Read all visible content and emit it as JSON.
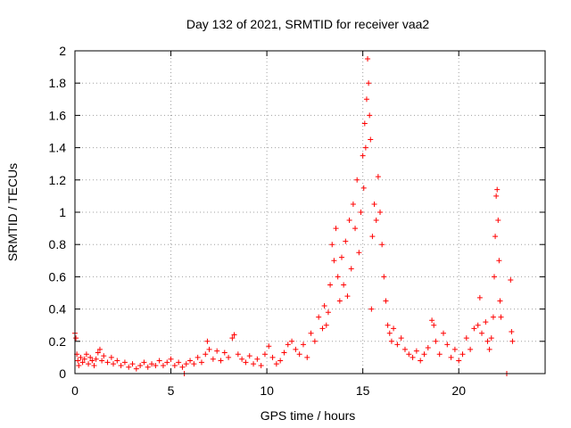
{
  "chart_data": {
    "type": "scatter",
    "title": "Day 132 of 2021, SRMTID for receiver vaa2",
    "xlabel": "GPS time / hours",
    "ylabel": "SRMTID / TECUs",
    "xlim": [
      0,
      24.5
    ],
    "ylim": [
      0,
      2
    ],
    "xticks": [
      0,
      5,
      10,
      15,
      20
    ],
    "xtick_labels": [
      "0",
      "5",
      "10",
      "15",
      "20"
    ],
    "yticks": [
      0,
      0.2,
      0.4,
      0.6,
      0.8,
      1,
      1.2,
      1.4,
      1.6,
      1.8,
      2
    ],
    "ytick_labels": [
      "0",
      "0.2",
      "0.4",
      "0.6",
      "0.8",
      "1",
      "1.2",
      "1.4",
      "1.6",
      "1.8",
      "2"
    ],
    "grid": true,
    "marker": "plus",
    "color": "#ff0000",
    "series": [
      {
        "name": "vaa2",
        "points": [
          [
            0.0,
            0.25
          ],
          [
            0.05,
            0.22
          ],
          [
            0.1,
            0.12
          ],
          [
            0.15,
            0.08
          ],
          [
            0.2,
            0.05
          ],
          [
            0.3,
            0.1
          ],
          [
            0.4,
            0.07
          ],
          [
            0.5,
            0.09
          ],
          [
            0.6,
            0.12
          ],
          [
            0.7,
            0.06
          ],
          [
            0.8,
            0.1
          ],
          [
            0.9,
            0.08
          ],
          [
            1.0,
            0.05
          ],
          [
            1.1,
            0.09
          ],
          [
            1.2,
            0.13
          ],
          [
            1.3,
            0.15
          ],
          [
            1.4,
            0.08
          ],
          [
            1.5,
            0.11
          ],
          [
            1.7,
            0.07
          ],
          [
            1.9,
            0.1
          ],
          [
            2.0,
            0.06
          ],
          [
            2.2,
            0.08
          ],
          [
            2.4,
            0.05
          ],
          [
            2.6,
            0.07
          ],
          [
            2.8,
            0.04
          ],
          [
            3.0,
            0.06
          ],
          [
            3.2,
            0.03
          ],
          [
            3.4,
            0.05
          ],
          [
            3.6,
            0.07
          ],
          [
            3.8,
            0.04
          ],
          [
            4.0,
            0.06
          ],
          [
            4.2,
            0.05
          ],
          [
            4.4,
            0.08
          ],
          [
            4.6,
            0.05
          ],
          [
            4.8,
            0.07
          ],
          [
            5.0,
            0.09
          ],
          [
            5.2,
            0.05
          ],
          [
            5.4,
            0.07
          ],
          [
            5.6,
            0.04
          ],
          [
            5.7,
            0.0
          ],
          [
            5.8,
            0.06
          ],
          [
            6.0,
            0.08
          ],
          [
            6.2,
            0.06
          ],
          [
            6.4,
            0.1
          ],
          [
            6.6,
            0.07
          ],
          [
            6.8,
            0.12
          ],
          [
            6.9,
            0.2
          ],
          [
            7.0,
            0.15
          ],
          [
            7.2,
            0.09
          ],
          [
            7.4,
            0.14
          ],
          [
            7.6,
            0.08
          ],
          [
            7.8,
            0.13
          ],
          [
            8.0,
            0.1
          ],
          [
            8.2,
            0.22
          ],
          [
            8.3,
            0.24
          ],
          [
            8.5,
            0.12
          ],
          [
            8.7,
            0.09
          ],
          [
            8.9,
            0.07
          ],
          [
            9.1,
            0.11
          ],
          [
            9.3,
            0.06
          ],
          [
            9.5,
            0.09
          ],
          [
            9.7,
            0.05
          ],
          [
            9.9,
            0.12
          ],
          [
            10.1,
            0.17
          ],
          [
            10.3,
            0.1
          ],
          [
            10.5,
            0.06
          ],
          [
            10.7,
            0.08
          ],
          [
            10.9,
            0.13
          ],
          [
            11.1,
            0.18
          ],
          [
            11.3,
            0.2
          ],
          [
            11.5,
            0.15
          ],
          [
            11.7,
            0.12
          ],
          [
            11.9,
            0.18
          ],
          [
            12.1,
            0.1
          ],
          [
            12.3,
            0.25
          ],
          [
            12.5,
            0.2
          ],
          [
            12.7,
            0.35
          ],
          [
            12.9,
            0.28
          ],
          [
            13.0,
            0.42
          ],
          [
            13.1,
            0.3
          ],
          [
            13.2,
            0.38
          ],
          [
            13.3,
            0.55
          ],
          [
            13.4,
            0.8
          ],
          [
            13.5,
            0.7
          ],
          [
            13.6,
            0.9
          ],
          [
            13.7,
            0.6
          ],
          [
            13.8,
            0.45
          ],
          [
            13.9,
            0.72
          ],
          [
            14.0,
            0.55
          ],
          [
            14.1,
            0.82
          ],
          [
            14.2,
            0.48
          ],
          [
            14.3,
            0.95
          ],
          [
            14.4,
            0.65
          ],
          [
            14.5,
            1.05
          ],
          [
            14.6,
            0.9
          ],
          [
            14.7,
            1.2
          ],
          [
            14.8,
            0.75
          ],
          [
            14.9,
            1.0
          ],
          [
            15.0,
            1.35
          ],
          [
            15.05,
            1.15
          ],
          [
            15.1,
            1.55
          ],
          [
            15.15,
            1.4
          ],
          [
            15.2,
            1.7
          ],
          [
            15.25,
            1.95
          ],
          [
            15.3,
            1.8
          ],
          [
            15.35,
            1.6
          ],
          [
            15.4,
            1.45
          ],
          [
            15.45,
            0.4
          ],
          [
            15.5,
            0.85
          ],
          [
            15.6,
            1.05
          ],
          [
            15.7,
            0.95
          ],
          [
            15.8,
            1.22
          ],
          [
            15.9,
            1.0
          ],
          [
            16.0,
            0.8
          ],
          [
            16.1,
            0.6
          ],
          [
            16.2,
            0.45
          ],
          [
            16.3,
            0.3
          ],
          [
            16.4,
            0.25
          ],
          [
            16.5,
            0.2
          ],
          [
            16.6,
            0.28
          ],
          [
            16.8,
            0.18
          ],
          [
            17.0,
            0.22
          ],
          [
            17.2,
            0.15
          ],
          [
            17.4,
            0.12
          ],
          [
            17.6,
            0.1
          ],
          [
            17.8,
            0.14
          ],
          [
            18.0,
            0.08
          ],
          [
            18.2,
            0.12
          ],
          [
            18.4,
            0.16
          ],
          [
            18.6,
            0.33
          ],
          [
            18.7,
            0.3
          ],
          [
            18.8,
            0.2
          ],
          [
            19.0,
            0.12
          ],
          [
            19.2,
            0.25
          ],
          [
            19.4,
            0.18
          ],
          [
            19.6,
            0.1
          ],
          [
            19.8,
            0.15
          ],
          [
            20.0,
            0.08
          ],
          [
            20.2,
            0.12
          ],
          [
            20.4,
            0.22
          ],
          [
            20.6,
            0.15
          ],
          [
            20.8,
            0.28
          ],
          [
            21.0,
            0.3
          ],
          [
            21.1,
            0.47
          ],
          [
            21.2,
            0.25
          ],
          [
            21.4,
            0.32
          ],
          [
            21.5,
            0.2
          ],
          [
            21.6,
            0.15
          ],
          [
            21.7,
            0.22
          ],
          [
            21.8,
            0.35
          ],
          [
            21.85,
            0.6
          ],
          [
            21.9,
            0.85
          ],
          [
            21.95,
            1.1
          ],
          [
            22.0,
            1.14
          ],
          [
            22.05,
            0.95
          ],
          [
            22.1,
            0.7
          ],
          [
            22.15,
            0.45
          ],
          [
            22.2,
            0.35
          ],
          [
            22.5,
            0.0
          ],
          [
            22.7,
            0.58
          ],
          [
            22.75,
            0.26
          ],
          [
            22.8,
            0.2
          ]
        ]
      }
    ]
  }
}
